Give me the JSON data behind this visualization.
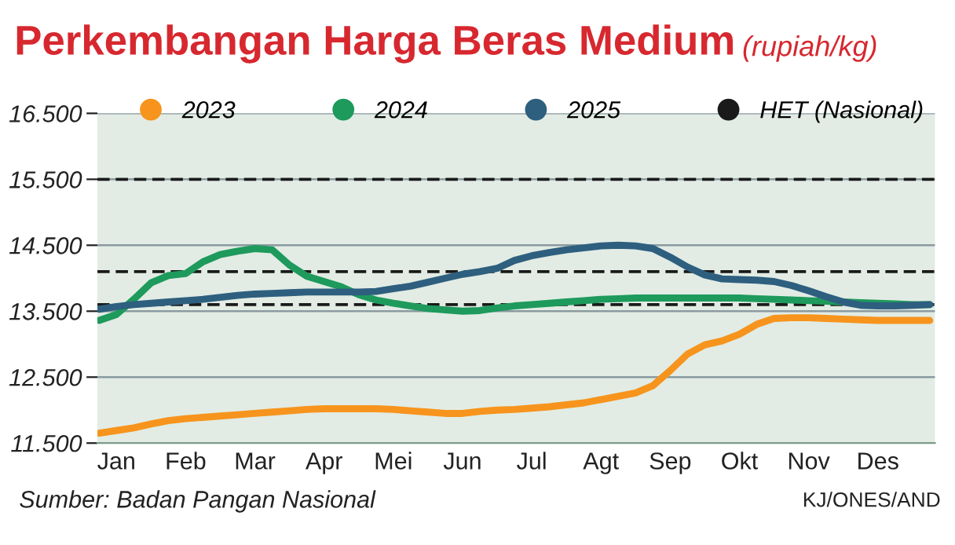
{
  "chart_data": {
    "type": "line",
    "title": "Perkembangan Harga Beras Medium",
    "subtitle": "(rupiah/kg)",
    "categories": [
      null,
      "Jan",
      null,
      null,
      null,
      "Feb",
      null,
      null,
      null,
      "Mar",
      null,
      null,
      null,
      "Apr",
      null,
      null,
      null,
      "Mei",
      null,
      null,
      null,
      "Jun",
      null,
      null,
      null,
      "Jul",
      null,
      null,
      null,
      "Agt",
      null,
      null,
      null,
      "Sep",
      null,
      null,
      null,
      "Okt",
      null,
      null,
      null,
      "Nov",
      null,
      null,
      null,
      "Des",
      null,
      null,
      null
    ],
    "ylim": [
      11500,
      16500
    ],
    "yticks": [
      {
        "value": 11500,
        "label": "11.500"
      },
      {
        "value": 12500,
        "label": "12.500"
      },
      {
        "value": 13500,
        "label": "13.500"
      },
      {
        "value": 14500,
        "label": "14.500"
      },
      {
        "value": 15500,
        "label": "15.500"
      },
      {
        "value": 16500,
        "label": "16.500"
      }
    ],
    "grid": "y",
    "legend": "top",
    "marker": "none",
    "line_style": "solid",
    "series": [
      {
        "name": "2023",
        "color": "#f7941d",
        "values": [
          11650,
          11690,
          11730,
          11790,
          11840,
          11870,
          11890,
          11910,
          11930,
          11950,
          11970,
          11990,
          12010,
          12020,
          12020,
          12020,
          12020,
          12010,
          11990,
          11970,
          11950,
          11950,
          11980,
          12000,
          12010,
          12030,
          12050,
          12080,
          12110,
          12160,
          12210,
          12260,
          12370,
          12600,
          12850,
          12990,
          13050,
          13150,
          13300,
          13390,
          13400,
          13400,
          13390,
          13380,
          13370,
          13360,
          13360,
          13360,
          13360
        ]
      },
      {
        "name": "2024",
        "color": "#1e9a5c",
        "values": [
          13360,
          13450,
          13680,
          13930,
          14040,
          14070,
          14250,
          14360,
          14410,
          14450,
          14430,
          14200,
          14030,
          13950,
          13870,
          13750,
          13670,
          13620,
          13580,
          13540,
          13520,
          13500,
          13510,
          13550,
          13580,
          13600,
          13620,
          13640,
          13660,
          13680,
          13690,
          13700,
          13700,
          13700,
          13700,
          13700,
          13700,
          13700,
          13690,
          13680,
          13670,
          13660,
          13650,
          13640,
          13630,
          13620,
          13610,
          13600,
          13600
        ]
      },
      {
        "name": "2025",
        "color": "#2e5f7f",
        "values": [
          13530,
          13570,
          13600,
          13620,
          13640,
          13660,
          13680,
          13710,
          13740,
          13760,
          13770,
          13780,
          13790,
          13790,
          13790,
          13790,
          13800,
          13840,
          13880,
          13940,
          14000,
          14060,
          14100,
          14150,
          14270,
          14340,
          14390,
          14430,
          14460,
          14490,
          14500,
          14490,
          14450,
          14320,
          14170,
          14050,
          13990,
          13980,
          13970,
          13950,
          13890,
          13810,
          13720,
          13640,
          13590,
          13580,
          13580,
          13590,
          13600
        ]
      }
    ],
    "ref_lines": [
      {
        "axis": "y",
        "value": 15500,
        "label": "HET (Nasional)",
        "color": "#1a1a1a",
        "line_style": "dashed"
      },
      {
        "axis": "y",
        "value": 14100,
        "color": "#1a1a1a",
        "line_style": "dashed"
      },
      {
        "axis": "y",
        "value": 13600,
        "color": "#1a1a1a",
        "line_style": "dashed"
      }
    ],
    "annotations": [
      "Sumber: Badan Pangan Nasional",
      "KJ/ONES/AND"
    ]
  }
}
